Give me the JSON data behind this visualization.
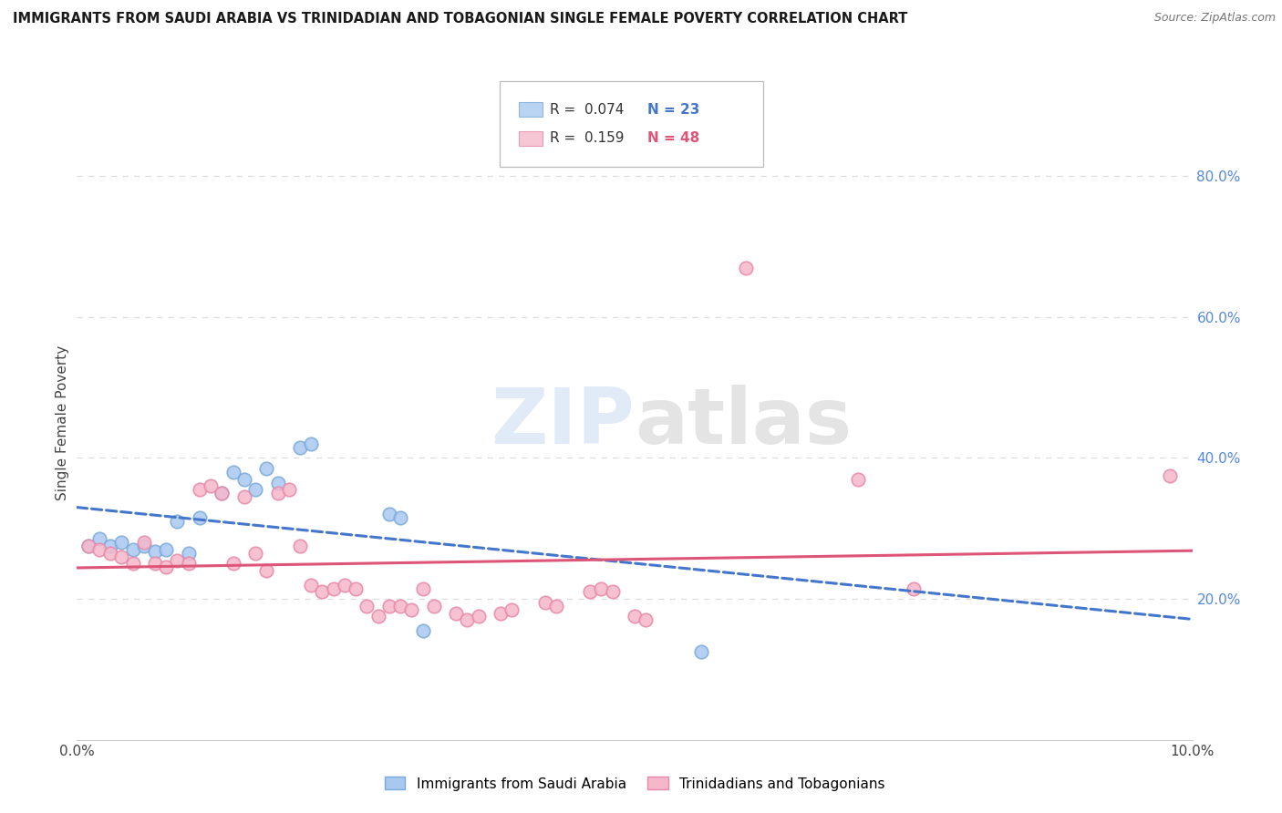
{
  "title": "IMMIGRANTS FROM SAUDI ARABIA VS TRINIDADIAN AND TOBAGONIAN SINGLE FEMALE POVERTY CORRELATION CHART",
  "source": "Source: ZipAtlas.com",
  "ylabel": "Single Female Poverty",
  "xlim": [
    0.0,
    0.1
  ],
  "ylim": [
    0.0,
    0.9
  ],
  "xtick_positions": [
    0.0,
    0.02,
    0.04,
    0.06,
    0.08,
    0.1
  ],
  "xticklabels": [
    "0.0%",
    "",
    "",
    "",
    "",
    "10.0%"
  ],
  "ytick_right_positions": [
    0.2,
    0.4,
    0.6,
    0.8
  ],
  "ytick_right_labels": [
    "20.0%",
    "40.0%",
    "60.0%",
    "80.0%"
  ],
  "legend_r_blue": "0.074",
  "legend_n_blue": "23",
  "legend_r_pink": "0.159",
  "legend_n_pink": "48",
  "legend_label_blue": "Immigrants from Saudi Arabia",
  "legend_label_pink": "Trinidadians and Tobagonians",
  "watermark_zip": "ZIP",
  "watermark_atlas": "atlas",
  "blue_color": "#a8c8f0",
  "blue_edge_color": "#7aaad8",
  "pink_color": "#f5b8cb",
  "pink_edge_color": "#e888a8",
  "blue_line_color": "#4477cc",
  "pink_line_color": "#dd5577",
  "blue_scatter": [
    [
      0.001,
      0.275
    ],
    [
      0.002,
      0.285
    ],
    [
      0.003,
      0.275
    ],
    [
      0.004,
      0.28
    ],
    [
      0.005,
      0.27
    ],
    [
      0.006,
      0.275
    ],
    [
      0.007,
      0.268
    ],
    [
      0.008,
      0.27
    ],
    [
      0.009,
      0.31
    ],
    [
      0.01,
      0.265
    ],
    [
      0.011,
      0.315
    ],
    [
      0.013,
      0.35
    ],
    [
      0.014,
      0.38
    ],
    [
      0.015,
      0.37
    ],
    [
      0.016,
      0.355
    ],
    [
      0.017,
      0.385
    ],
    [
      0.018,
      0.365
    ],
    [
      0.02,
      0.415
    ],
    [
      0.021,
      0.42
    ],
    [
      0.028,
      0.32
    ],
    [
      0.029,
      0.315
    ],
    [
      0.031,
      0.155
    ],
    [
      0.056,
      0.125
    ]
  ],
  "pink_scatter": [
    [
      0.001,
      0.275
    ],
    [
      0.002,
      0.27
    ],
    [
      0.003,
      0.265
    ],
    [
      0.004,
      0.26
    ],
    [
      0.005,
      0.25
    ],
    [
      0.006,
      0.28
    ],
    [
      0.007,
      0.25
    ],
    [
      0.008,
      0.245
    ],
    [
      0.009,
      0.255
    ],
    [
      0.01,
      0.25
    ],
    [
      0.011,
      0.355
    ],
    [
      0.012,
      0.36
    ],
    [
      0.013,
      0.35
    ],
    [
      0.014,
      0.25
    ],
    [
      0.015,
      0.345
    ],
    [
      0.016,
      0.265
    ],
    [
      0.017,
      0.24
    ],
    [
      0.018,
      0.35
    ],
    [
      0.019,
      0.355
    ],
    [
      0.02,
      0.275
    ],
    [
      0.021,
      0.22
    ],
    [
      0.022,
      0.21
    ],
    [
      0.023,
      0.215
    ],
    [
      0.024,
      0.22
    ],
    [
      0.025,
      0.215
    ],
    [
      0.026,
      0.19
    ],
    [
      0.027,
      0.175
    ],
    [
      0.028,
      0.19
    ],
    [
      0.029,
      0.19
    ],
    [
      0.03,
      0.185
    ],
    [
      0.031,
      0.215
    ],
    [
      0.032,
      0.19
    ],
    [
      0.034,
      0.18
    ],
    [
      0.035,
      0.17
    ],
    [
      0.036,
      0.175
    ],
    [
      0.038,
      0.18
    ],
    [
      0.039,
      0.185
    ],
    [
      0.042,
      0.195
    ],
    [
      0.043,
      0.19
    ],
    [
      0.046,
      0.21
    ],
    [
      0.047,
      0.215
    ],
    [
      0.048,
      0.21
    ],
    [
      0.05,
      0.175
    ],
    [
      0.051,
      0.17
    ],
    [
      0.06,
      0.67
    ],
    [
      0.07,
      0.37
    ],
    [
      0.075,
      0.215
    ],
    [
      0.098,
      0.375
    ]
  ],
  "background_color": "#ffffff",
  "grid_color": "#dddddd"
}
